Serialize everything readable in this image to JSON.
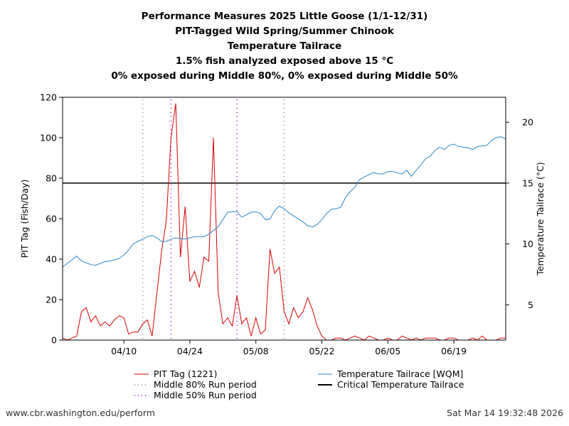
{
  "titles": [
    "Performance Measures 2025 Little Goose (1/1-12/31)",
    "PIT-Tagged Wild Spring/Summer Chinook",
    "Temperature Tailrace",
    "1.5% fish analyzed exposed above 15 °C",
    "0% exposed during Middle 80%, 0% exposed during Middle 50%"
  ],
  "footer": {
    "url": "www.cbr.washington.edu/perform",
    "timestamp": "Sat Mar 14 19:32:48 2026"
  },
  "chart_data": {
    "type": "line",
    "ylabel": "PIT Tag (Fish/Day)",
    "y2label": "Temperature Tailrace (°C)",
    "xlim": [
      "03/28",
      "06/30"
    ],
    "ylim": [
      0,
      120
    ],
    "y2lim": [
      2.1,
      22.05
    ],
    "xticks": [
      "04/10",
      "04/24",
      "05/08",
      "05/22",
      "06/05",
      "06/19"
    ],
    "yticks": [
      0,
      20,
      40,
      60,
      80,
      100,
      120
    ],
    "y2ticks": [
      5,
      10,
      15,
      20
    ],
    "grid": false,
    "legend_position": "bottom",
    "x": [
      "03/28",
      "03/29",
      "03/30",
      "03/31",
      "04/01",
      "04/02",
      "04/03",
      "04/04",
      "04/05",
      "04/06",
      "04/07",
      "04/08",
      "04/09",
      "04/10",
      "04/11",
      "04/12",
      "04/13",
      "04/14",
      "04/15",
      "04/16",
      "04/17",
      "04/18",
      "04/19",
      "04/20",
      "04/21",
      "04/22",
      "04/23",
      "04/24",
      "04/25",
      "04/26",
      "04/27",
      "04/28",
      "04/29",
      "04/30",
      "05/01",
      "05/02",
      "05/03",
      "05/04",
      "05/05",
      "05/06",
      "05/07",
      "05/08",
      "05/09",
      "05/10",
      "05/11",
      "05/12",
      "05/13",
      "05/14",
      "05/15",
      "05/16",
      "05/17",
      "05/18",
      "05/19",
      "05/20",
      "05/21",
      "05/22",
      "05/23",
      "05/24",
      "05/25",
      "05/26",
      "05/27",
      "05/28",
      "05/29",
      "05/30",
      "05/31",
      "06/01",
      "06/02",
      "06/03",
      "06/04",
      "06/05",
      "06/06",
      "06/07",
      "06/08",
      "06/09",
      "06/10",
      "06/11",
      "06/12",
      "06/13",
      "06/14",
      "06/15",
      "06/16",
      "06/17",
      "06/18",
      "06/19",
      "06/20",
      "06/21",
      "06/22",
      "06/23",
      "06/24",
      "06/25",
      "06/26",
      "06/27",
      "06/28",
      "06/29",
      "06/30"
    ],
    "series": [
      {
        "name": "PIT Tag (1221)",
        "axis": "left",
        "color": "#d40000",
        "values": [
          1,
          0,
          1,
          2,
          14,
          16,
          9,
          12,
          7,
          9,
          7,
          10,
          12,
          11,
          3,
          4,
          4,
          8,
          10,
          2,
          23,
          44,
          59,
          100,
          117,
          41,
          66,
          29,
          34,
          26,
          41,
          39,
          100,
          24,
          8,
          11,
          7,
          22,
          8,
          11,
          2,
          11,
          3,
          5,
          45,
          33,
          36,
          14,
          8,
          16,
          11,
          14,
          21,
          15,
          7,
          2,
          0,
          0,
          1,
          1,
          0,
          1,
          2,
          1,
          0,
          2,
          1,
          0,
          0,
          1,
          0,
          0,
          2,
          1,
          0,
          1,
          0,
          1,
          1,
          1,
          0,
          0,
          1,
          1,
          0,
          0,
          0,
          1,
          0,
          2,
          0,
          0,
          0,
          1,
          1
        ]
      },
      {
        "name": "Temperature Tailrace [WQM]",
        "axis": "right",
        "color": "#2a88c8",
        "values": [
          8.1,
          8.4,
          8.7,
          9.0,
          8.6,
          8.45,
          8.3,
          8.25,
          8.4,
          8.55,
          8.6,
          8.7,
          8.8,
          9.1,
          9.5,
          10.0,
          10.2,
          10.4,
          10.6,
          10.7,
          10.5,
          10.2,
          10.2,
          10.4,
          10.5,
          10.45,
          10.4,
          10.5,
          10.6,
          10.6,
          10.6,
          10.8,
          11.1,
          11.4,
          12.0,
          12.6,
          12.65,
          12.65,
          12.2,
          12.4,
          12.6,
          12.65,
          12.5,
          12.0,
          12.05,
          12.75,
          13.1,
          12.9,
          12.55,
          12.3,
          12.05,
          11.8,
          11.5,
          11.4,
          11.6,
          12.0,
          12.5,
          12.85,
          12.9,
          13.0,
          13.8,
          14.3,
          14.65,
          15.3,
          15.5,
          15.7,
          15.85,
          15.75,
          15.75,
          15.95,
          15.95,
          15.85,
          15.75,
          16.05,
          15.55,
          16.05,
          16.5,
          17.0,
          17.2,
          17.7,
          17.95,
          17.75,
          18.1,
          18.2,
          18.0,
          17.95,
          17.9,
          17.75,
          18.0,
          18.05,
          18.1,
          18.5,
          18.75,
          18.8,
          18.6
        ]
      }
    ],
    "critical_temperature": {
      "name": "Critical Temperature Tailrace",
      "value": 15,
      "color": "#000000"
    },
    "middle_80": {
      "name": "Middle 80% Run period",
      "dates": [
        "04/14",
        "05/14"
      ],
      "color": "#808080"
    },
    "middle_50": {
      "name": "Middle 50% Run period",
      "dates": [
        "04/20",
        "05/04"
      ],
      "color": "#9400d3"
    }
  }
}
